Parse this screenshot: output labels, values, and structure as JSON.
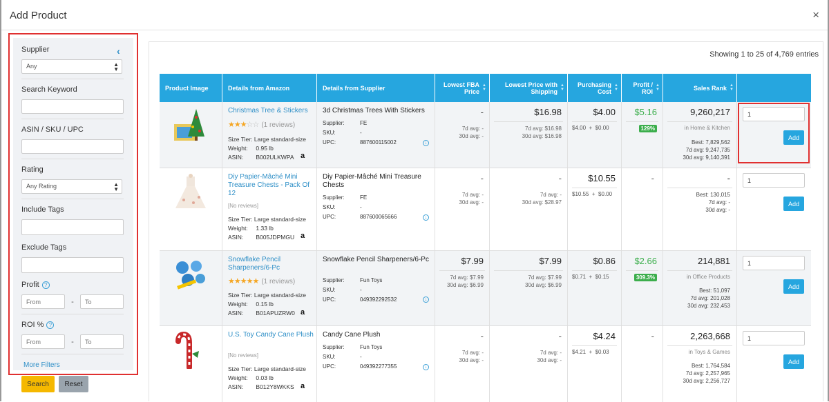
{
  "modal": {
    "title": "Add Product",
    "close_glyph": "×"
  },
  "sidebar": {
    "collapse_glyph": "‹",
    "supplier_label": "Supplier",
    "supplier_value": "Any",
    "keyword_label": "Search Keyword",
    "asin_label": "ASIN / SKU / UPC",
    "rating_label": "Rating",
    "rating_value": "Any Rating",
    "include_tags_label": "Include Tags",
    "exclude_tags_label": "Exclude Tags",
    "profit_label": "Profit",
    "roi_label": "ROI %",
    "from_placeholder": "From",
    "to_placeholder": "To",
    "range_dash": "-",
    "more_filters": "More Filters",
    "search_button": "Search",
    "reset_button": "Reset"
  },
  "main": {
    "entries_text": "Showing 1 to 25 of 4,769 entries",
    "columns": [
      "Product Image",
      "Details from Amazon",
      "Details from Supplier",
      "Lowest FBA Price",
      "Lowest Price with Shipping",
      "Purchasing Cost",
      "Profit / ROI",
      "Sales Rank",
      ""
    ],
    "labels": {
      "size_tier": "Size Tier:",
      "weight": "Weight:",
      "asin": "ASIN:",
      "supplier": "Supplier:",
      "sku": "SKU:",
      "upc": "UPC:",
      "best": "Best:",
      "avg7": "7d avg:",
      "avg30": "30d avg:",
      "no_reviews": "[No reviews]",
      "add": "Add",
      "plus": "+",
      "amazon_glyph": "a",
      "info_glyph": "↓"
    },
    "rows": [
      {
        "title": "Christmas Tree & Stickers",
        "stars": 3,
        "reviews": "(1 reviews)",
        "size_tier": "Large standard-size",
        "weight": "0.95 lb",
        "asin": "B002ULKWPA",
        "supplier_title": "3d Christmas Trees With Stickers",
        "supplier": "FE",
        "sku": "-",
        "upc": "887600115002",
        "fba": "-",
        "fba_7d": "-",
        "fba_30d": "-",
        "ship": "$16.98",
        "ship_7d": "$16.98",
        "ship_30d": "$16.98",
        "cost": "$4.00",
        "cost_a": "$4.00",
        "cost_b": "$0.00",
        "profit": "$5.16",
        "roi": "129%",
        "rank": "9,260,217",
        "category": "in Home & Kitchen",
        "rank_best": "7,829,562",
        "rank_7d": "9,247,735",
        "rank_30d": "9,140,391",
        "qty": "1"
      },
      {
        "title": "Diy Papier-Mâché Mini Treasure Chests - Pack Of 12",
        "stars": 0,
        "reviews": "",
        "size_tier": "Large standard-size",
        "weight": "1.33 lb",
        "asin": "B005JDPMGU",
        "supplier_title": "Diy Papier-Mâché Mini Treasure Chests",
        "supplier": "FE",
        "sku": "-",
        "upc": "887600065666",
        "fba": "-",
        "fba_7d": "-",
        "fba_30d": "-",
        "ship": "-",
        "ship_7d": "-",
        "ship_30d": "$28.97",
        "cost": "$10.55",
        "cost_a": "$10.55",
        "cost_b": "$0.00",
        "profit": "-",
        "roi": "",
        "rank": "-",
        "category": "",
        "rank_best": "130,015",
        "rank_7d": "-",
        "rank_30d": "-",
        "qty": "1"
      },
      {
        "title": "Snowflake Pencil Sharpeners/6-Pc",
        "stars": 5,
        "reviews": "(1 reviews)",
        "size_tier": "Large standard-size",
        "weight": "0.15 lb",
        "asin": "B01APUZRW0",
        "supplier_title": "Snowflake Pencil Sharpeners/6-Pc",
        "supplier": "Fun Toys",
        "sku": "-",
        "upc": "049392292532",
        "fba": "$7.99",
        "fba_7d": "$7.99",
        "fba_30d": "$6.99",
        "ship": "$7.99",
        "ship_7d": "$7.99",
        "ship_30d": "$6.99",
        "cost": "$0.86",
        "cost_a": "$0.71",
        "cost_b": "$0.15",
        "profit": "$2.66",
        "roi": "309.3%",
        "rank": "214,881",
        "category": "in Office Products",
        "rank_best": "51,097",
        "rank_7d": "201,028",
        "rank_30d": "232,453",
        "qty": "1"
      },
      {
        "title": "U.S. Toy Candy Cane Plush",
        "stars": 0,
        "reviews": "",
        "size_tier": "Large standard-size",
        "weight": "0.03 lb",
        "asin": "B012Y8WKKS",
        "supplier_title": "Candy Cane Plush",
        "supplier": "Fun Toys",
        "sku": "-",
        "upc": "049392277355",
        "fba": "-",
        "fba_7d": "-",
        "fba_30d": "-",
        "ship": "-",
        "ship_7d": "-",
        "ship_30d": "-",
        "cost": "$4.24",
        "cost_a": "$4.21",
        "cost_b": "$0.03",
        "profit": "-",
        "roi": "",
        "rank": "2,263,668",
        "category": "in Toys & Games",
        "rank_best": "1,764,584",
        "rank_7d": "2,257,965",
        "rank_30d": "2,256,727",
        "qty": "1"
      }
    ]
  }
}
